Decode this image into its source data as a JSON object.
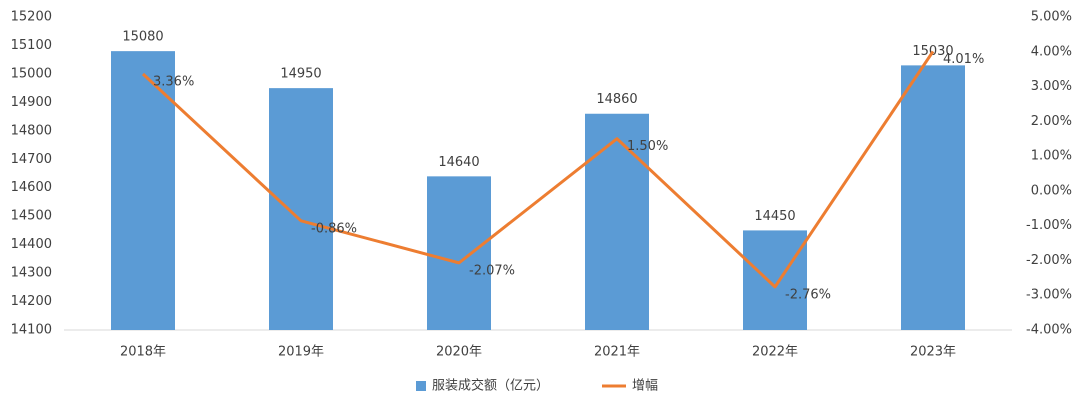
{
  "chart_data": {
    "type": "bar",
    "categories": [
      "2018年",
      "2019年",
      "2020年",
      "2021年",
      "2022年",
      "2023年"
    ],
    "series": [
      {
        "name": "服装成交额（亿元）",
        "type": "bar",
        "color": "#5b9bd5",
        "values": [
          15080,
          14950,
          14640,
          14860,
          14450,
          15030
        ]
      },
      {
        "name": "增幅",
        "type": "line",
        "axis": "y2",
        "color": "#ed7d31",
        "values": [
          3.36,
          -0.86,
          -2.07,
          1.5,
          -2.76,
          4.01
        ],
        "value_labels": [
          "3.36%",
          "-0.86%",
          "-2.07%",
          "1.50%",
          "-2.76%",
          "4.01%"
        ]
      }
    ],
    "ylim": [
      14100,
      15200
    ],
    "yticks": [
      14100,
      14200,
      14300,
      14400,
      14500,
      14600,
      14700,
      14800,
      14900,
      15000,
      15100,
      15200
    ],
    "y2lim": [
      -4,
      5
    ],
    "y2ticks": [
      {
        "value": -4,
        "label": "-4.00%"
      },
      {
        "value": -3,
        "label": "-3.00%"
      },
      {
        "value": -2,
        "label": "-2.00%"
      },
      {
        "value": -1,
        "label": "-1.00%"
      },
      {
        "value": 0,
        "label": "0.00%"
      },
      {
        "value": 1,
        "label": "1.00%"
      },
      {
        "value": 2,
        "label": "2.00%"
      },
      {
        "value": 3,
        "label": "3.00%"
      },
      {
        "value": 4,
        "label": "4.00%"
      },
      {
        "value": 5,
        "label": "5.00%"
      }
    ],
    "grid": false,
    "legend": "bottom"
  }
}
